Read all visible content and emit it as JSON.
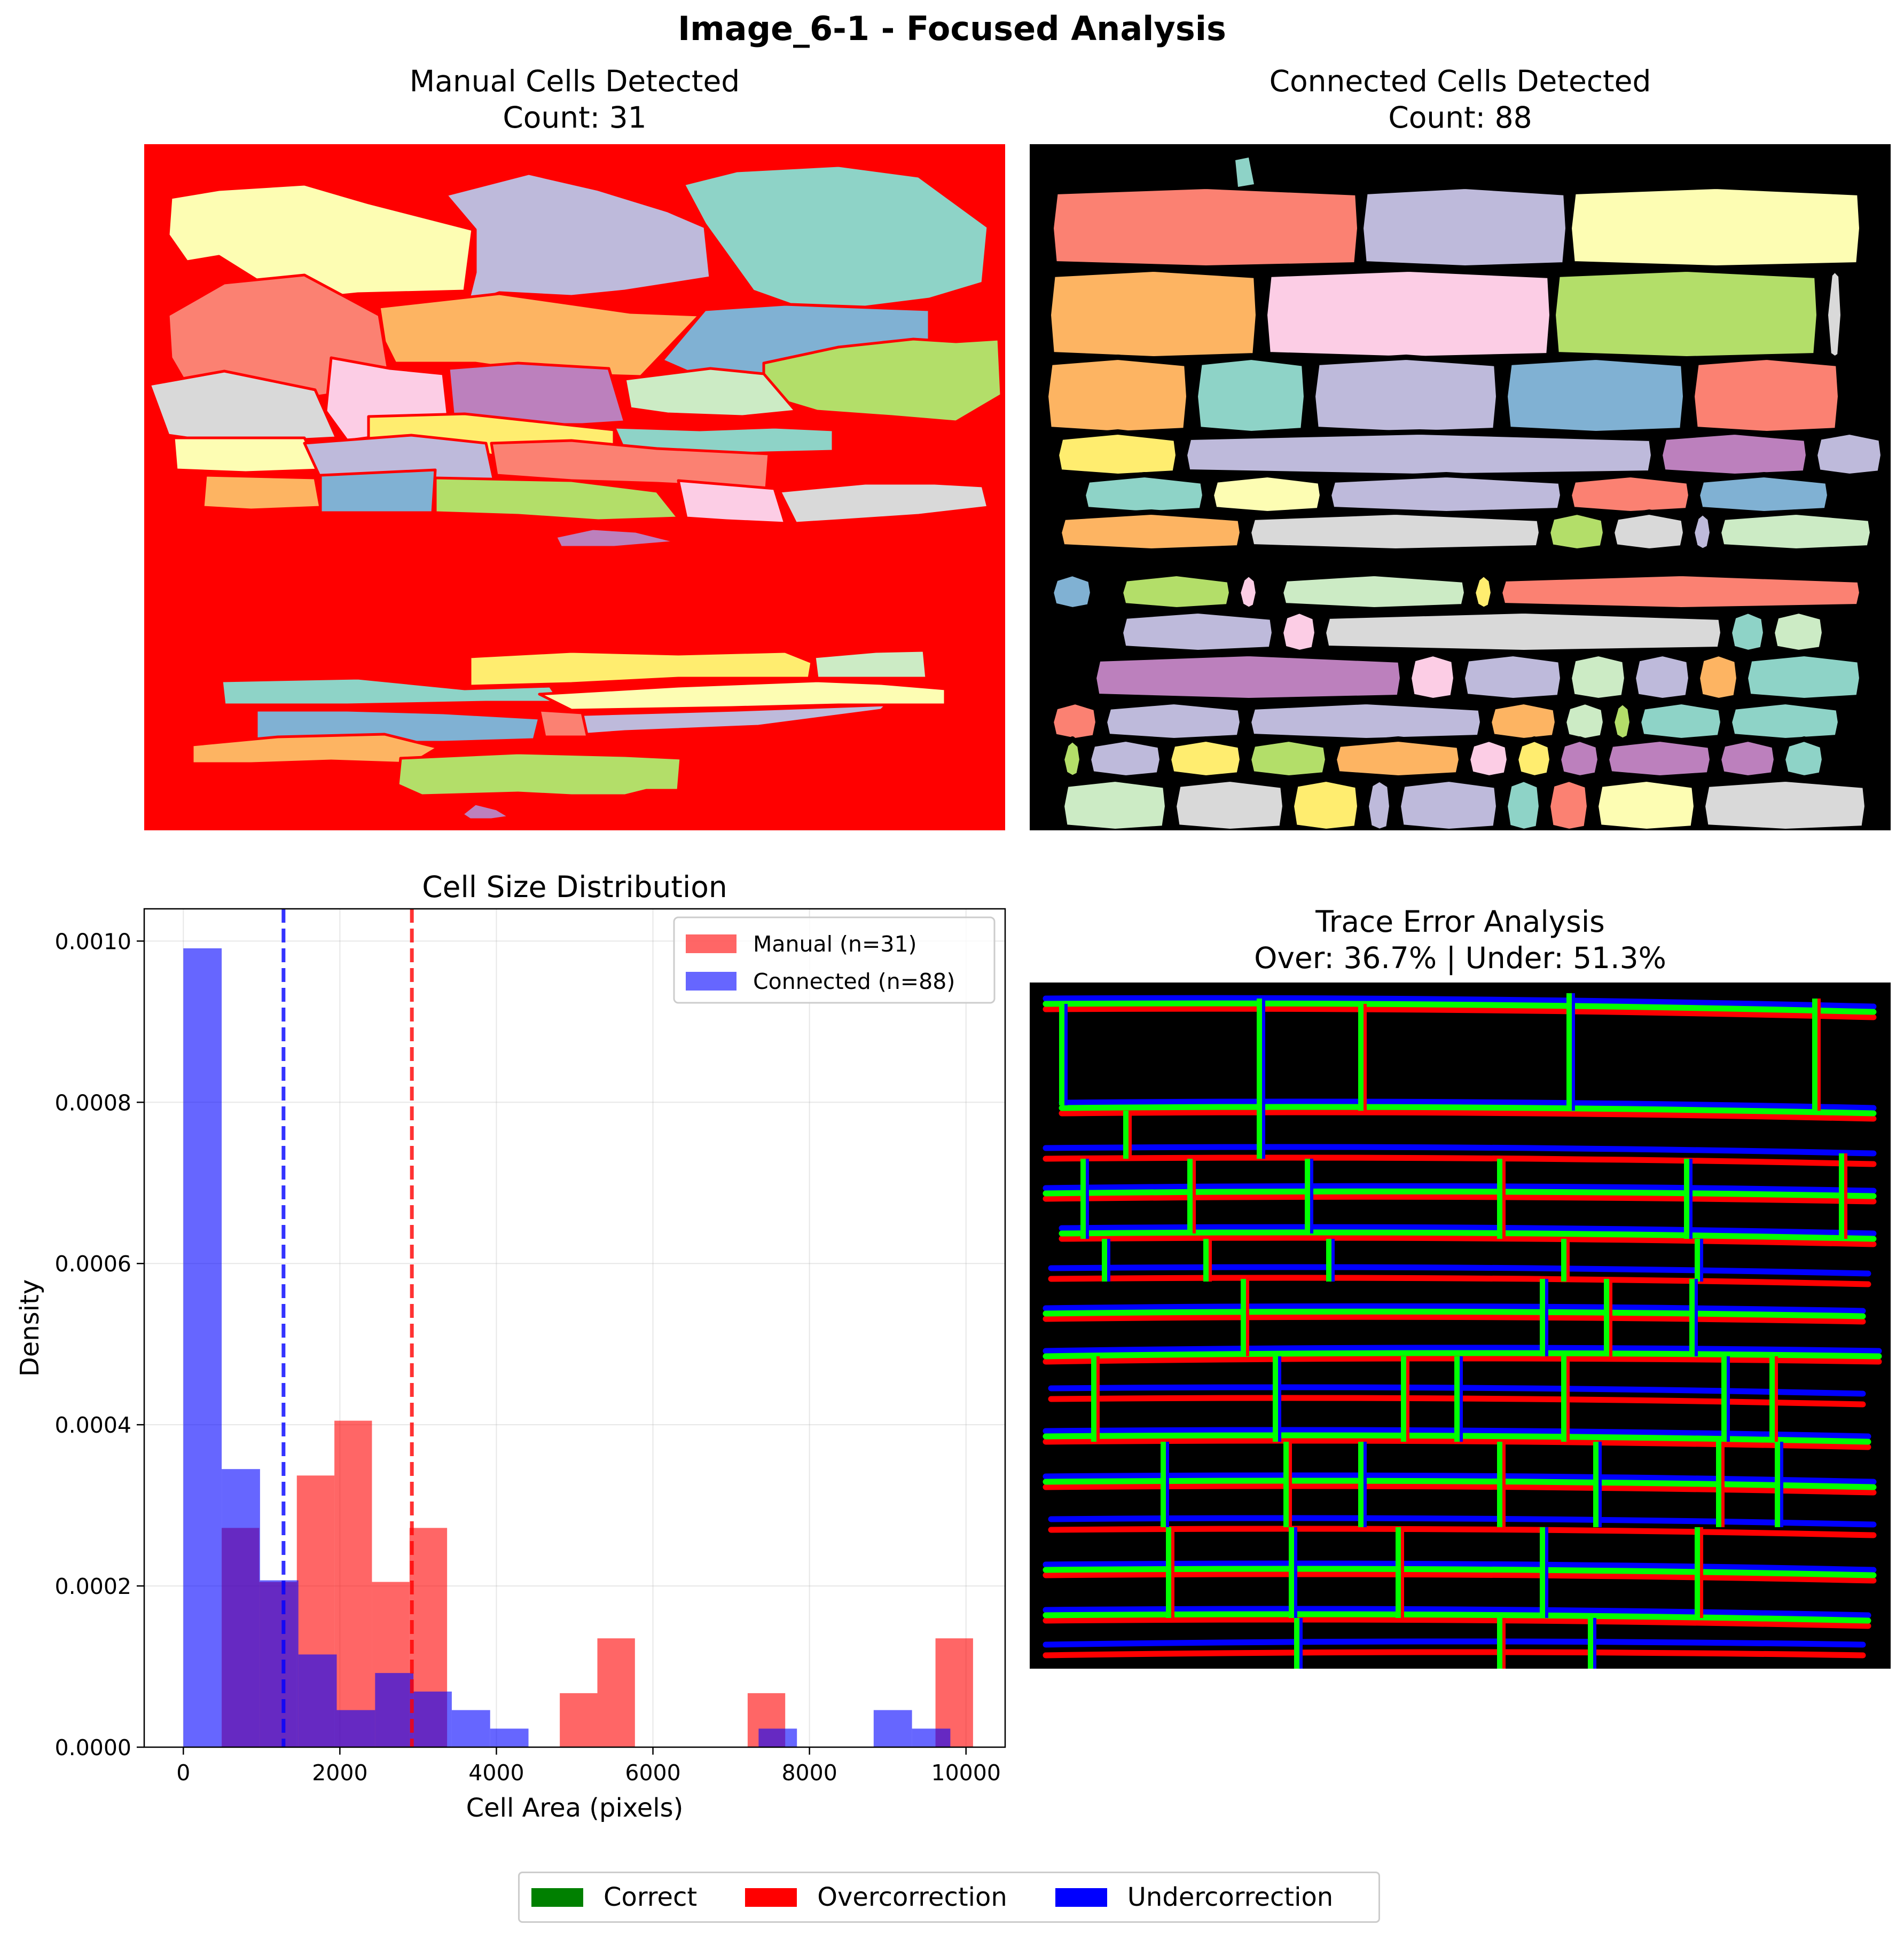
{
  "figure": {
    "title": "Image_6-1 - Focused Analysis"
  },
  "panels": {
    "manual": {
      "title": "Manual Cells Detected",
      "subtitle": "Count: 31",
      "background": "#ff0000"
    },
    "connected": {
      "title": "Connected Cells Detected",
      "subtitle": "Count: 88",
      "background": "#000000"
    },
    "trace": {
      "title": "Trace Error Analysis",
      "subtitle": "Over: 36.7% | Under: 51.3%",
      "background": "#000000"
    }
  },
  "palette": [
    "#fdfdb3",
    "#bebadb",
    "#8ed3c7",
    "#fb8172",
    "#fdb462",
    "#80b1d3",
    "#fccde5",
    "#d9d9d9",
    "#bc80bd",
    "#ccebc5",
    "#ffed6f",
    "#b3de69"
  ],
  "chart_data": {
    "type": "bar",
    "title": "Cell Size Distribution",
    "xlabel": "Cell Area (pixels)",
    "ylabel": "Density",
    "xlim": [
      -500,
      10500
    ],
    "ylim": [
      0,
      0.00104
    ],
    "xticks": [
      0,
      2000,
      4000,
      6000,
      8000,
      10000
    ],
    "xtick_labels": [
      "0",
      "2000",
      "4000",
      "6000",
      "8000",
      "10000"
    ],
    "yticks": [
      0,
      0.0002,
      0.0004,
      0.0006,
      0.0008,
      0.001
    ],
    "ytick_labels": [
      "0.0000",
      "0.0002",
      "0.0004",
      "0.0006",
      "0.0008",
      "0.0010"
    ],
    "grid": true,
    "legend_position": "top-right",
    "bin_edges": [
      0,
      490,
      980,
      1470,
      1960,
      2450,
      2940,
      3430,
      3920,
      4410,
      4900,
      5390,
      5880,
      6370,
      6860,
      7350,
      7840,
      8330,
      8820,
      9310,
      9800,
      10290
    ],
    "series": [
      {
        "name": "Manual (n=31)",
        "color": "#ff0000",
        "opacity": 0.6,
        "bins": [
          {
            "x0": 490,
            "x1": 970,
            "y": 0.000272
          },
          {
            "x0": 970,
            "x1": 1450,
            "y": 0.000205
          },
          {
            "x0": 1450,
            "x1": 1930,
            "y": 0.000337
          },
          {
            "x0": 1930,
            "x1": 2410,
            "y": 0.000405
          },
          {
            "x0": 2410,
            "x1": 2890,
            "y": 0.000205
          },
          {
            "x0": 2890,
            "x1": 3370,
            "y": 0.000272
          },
          {
            "x0": 4810,
            "x1": 5290,
            "y": 6.7e-05
          },
          {
            "x0": 5290,
            "x1": 5770,
            "y": 0.000135
          },
          {
            "x0": 7210,
            "x1": 7690,
            "y": 6.7e-05
          },
          {
            "x0": 9610,
            "x1": 10090,
            "y": 0.000135
          }
        ],
        "mean": 2920
      },
      {
        "name": "Connected (n=88)",
        "color": "#0000ff",
        "opacity": 0.6,
        "bins": [
          {
            "x0": 0,
            "x1": 490,
            "y": 0.000991
          },
          {
            "x0": 490,
            "x1": 980,
            "y": 0.000345
          },
          {
            "x0": 980,
            "x1": 1470,
            "y": 0.000207
          },
          {
            "x0": 1470,
            "x1": 1960,
            "y": 0.000115
          },
          {
            "x0": 1960,
            "x1": 2450,
            "y": 4.6e-05
          },
          {
            "x0": 2450,
            "x1": 2940,
            "y": 9.2e-05
          },
          {
            "x0": 2940,
            "x1": 3430,
            "y": 6.9e-05
          },
          {
            "x0": 3430,
            "x1": 3920,
            "y": 4.6e-05
          },
          {
            "x0": 3920,
            "x1": 4410,
            "y": 2.3e-05
          },
          {
            "x0": 7350,
            "x1": 7840,
            "y": 2.3e-05
          },
          {
            "x0": 8820,
            "x1": 9310,
            "y": 4.6e-05
          },
          {
            "x0": 9310,
            "x1": 9800,
            "y": 2.3e-05
          }
        ],
        "mean": 1280
      }
    ]
  },
  "legend_bottom": [
    {
      "label": "Correct",
      "color": "#008000"
    },
    {
      "label": "Overcorrection",
      "color": "#ff0000"
    },
    {
      "label": "Undercorrection",
      "color": "#0000ff"
    }
  ]
}
